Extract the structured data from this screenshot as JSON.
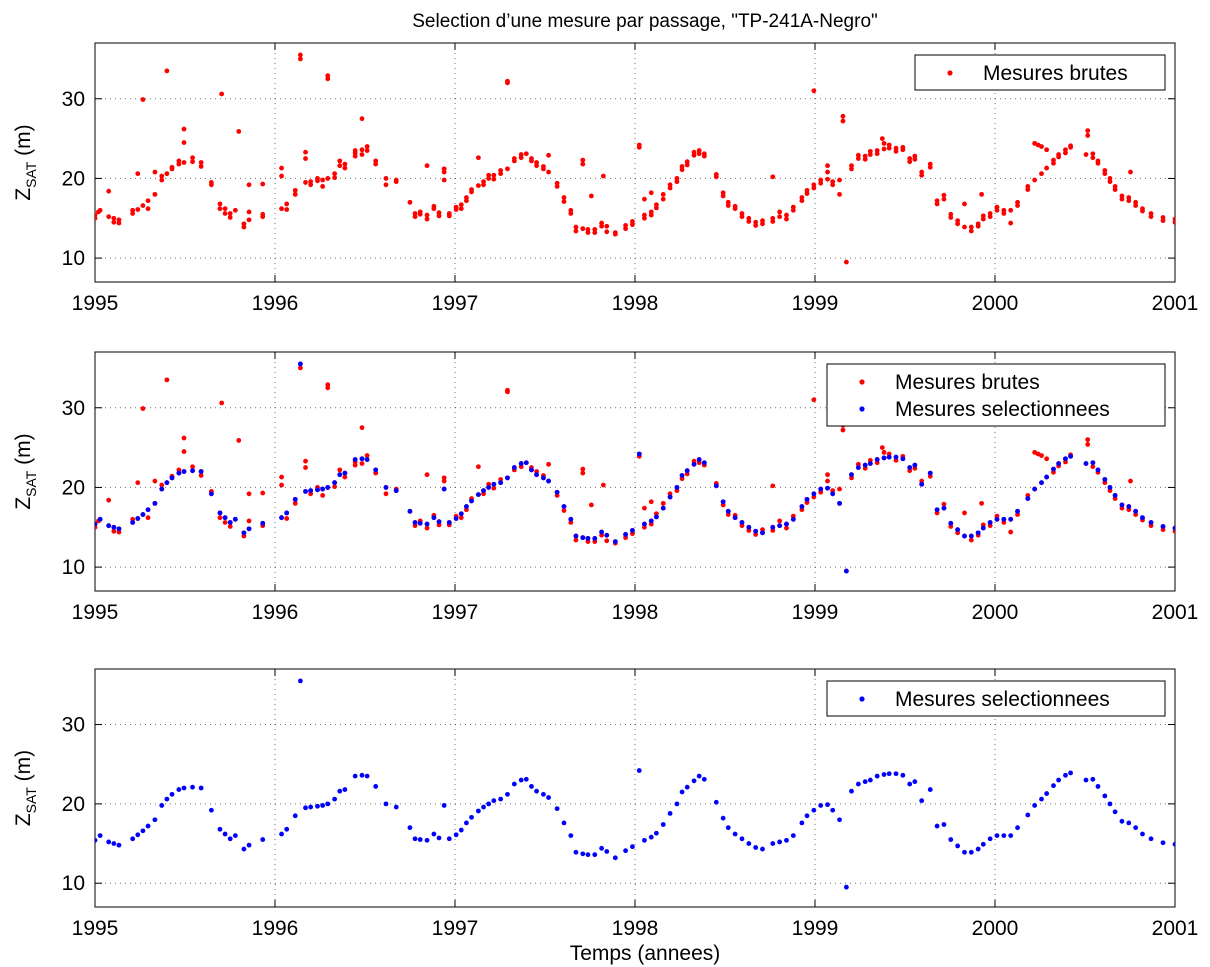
{
  "figure": {
    "title": "Selection d’une mesure par passage, \"TP-241A-Negro\"",
    "xlabel": "Temps (annees)",
    "ylabel_main": "Z",
    "ylabel_sub": "SAT",
    "ylabel_unit": " (m)",
    "colors": {
      "brutes": "#ff0000",
      "selectionnees": "#0000ff"
    },
    "legend_labels": {
      "brutes": "Mesures brutes",
      "selectionnees": "Mesures selectionnees"
    }
  },
  "chart_data": [
    {
      "type": "scatter",
      "panel": "top",
      "xlim": [
        1995,
        2001
      ],
      "ylim": [
        7,
        37
      ],
      "xticks": [
        1995,
        1996,
        1997,
        1998,
        1999,
        2000,
        2001
      ],
      "yticks": [
        10,
        20,
        30
      ],
      "grid": true,
      "legend_position": "top-right",
      "series": [
        {
          "name": "Mesures brutes",
          "color": "#ff0000",
          "key": "brutes"
        }
      ]
    },
    {
      "type": "scatter",
      "panel": "middle",
      "xlim": [
        1995,
        2001
      ],
      "ylim": [
        7,
        37
      ],
      "xticks": [
        1995,
        1996,
        1997,
        1998,
        1999,
        2000,
        2001
      ],
      "yticks": [
        10,
        20,
        30
      ],
      "grid": true,
      "legend_position": "top-right",
      "series": [
        {
          "name": "Mesures brutes",
          "color": "#ff0000",
          "key": "brutes"
        },
        {
          "name": "Mesures selectionnees",
          "color": "#0000ff",
          "key": "selectionnees"
        }
      ]
    },
    {
      "type": "scatter",
      "panel": "bottom",
      "xlim": [
        1995,
        2001
      ],
      "ylim": [
        7,
        37
      ],
      "xticks": [
        1995,
        1996,
        1997,
        1998,
        1999,
        2000,
        2001
      ],
      "yticks": [
        10,
        20,
        30
      ],
      "grid": true,
      "legend_position": "top-right",
      "series": [
        {
          "name": "Mesures selectionnees",
          "color": "#0000ff",
          "key": "selectionnees"
        }
      ]
    }
  ],
  "points": {
    "selectionnees": [
      [
        1995.0,
        15.4
      ],
      [
        1995.03,
        16.0
      ],
      [
        1995.08,
        15.2
      ],
      [
        1995.11,
        15.0
      ],
      [
        1995.14,
        14.8
      ],
      [
        1995.22,
        15.6
      ],
      [
        1995.25,
        16.1
      ],
      [
        1995.28,
        16.6
      ],
      [
        1995.31,
        17.2
      ],
      [
        1995.35,
        18.0
      ],
      [
        1995.39,
        19.8
      ],
      [
        1995.42,
        20.6
      ],
      [
        1995.45,
        21.2
      ],
      [
        1995.49,
        21.8
      ],
      [
        1995.52,
        22.0
      ],
      [
        1995.57,
        22.1
      ],
      [
        1995.62,
        22.0
      ],
      [
        1995.68,
        19.2
      ],
      [
        1995.73,
        16.8
      ],
      [
        1995.76,
        16.2
      ],
      [
        1995.79,
        15.6
      ],
      [
        1995.82,
        16.0
      ],
      [
        1995.87,
        14.3
      ],
      [
        1995.9,
        14.8
      ],
      [
        1995.98,
        15.5
      ],
      [
        1996.09,
        16.2
      ],
      [
        1996.12,
        16.8
      ],
      [
        1996.17,
        18.5
      ],
      [
        1996.2,
        35.5
      ],
      [
        1996.23,
        19.5
      ],
      [
        1996.26,
        19.6
      ],
      [
        1996.3,
        19.7
      ],
      [
        1996.33,
        19.8
      ],
      [
        1996.36,
        20.0
      ],
      [
        1996.4,
        20.6
      ],
      [
        1996.43,
        21.6
      ],
      [
        1996.46,
        21.8
      ],
      [
        1996.52,
        23.5
      ],
      [
        1996.56,
        23.6
      ],
      [
        1996.59,
        23.5
      ],
      [
        1996.64,
        22.2
      ],
      [
        1996.7,
        20.0
      ],
      [
        1996.76,
        19.6
      ],
      [
        1996.84,
        17.0
      ],
      [
        1996.87,
        15.6
      ],
      [
        1996.9,
        15.5
      ],
      [
        1996.94,
        15.4
      ],
      [
        1996.98,
        16.2
      ],
      [
        1997.01,
        15.7
      ],
      [
        1997.04,
        19.8
      ],
      [
        1997.07,
        15.6
      ],
      [
        1997.11,
        16.1
      ],
      [
        1997.14,
        16.7
      ],
      [
        1997.17,
        17.6
      ],
      [
        1997.2,
        18.3
      ],
      [
        1997.24,
        19.1
      ],
      [
        1997.27,
        19.6
      ],
      [
        1997.3,
        20.0
      ],
      [
        1997.33,
        20.4
      ],
      [
        1997.37,
        20.6
      ],
      [
        1997.41,
        21.2
      ],
      [
        1997.45,
        22.5
      ],
      [
        1997.49,
        23.0
      ],
      [
        1997.52,
        23.1
      ],
      [
        1997.55,
        22.2
      ],
      [
        1997.58,
        21.6
      ],
      [
        1997.62,
        21.2
      ],
      [
        1997.65,
        20.8
      ],
      [
        1997.7,
        19.4
      ],
      [
        1997.74,
        17.6
      ],
      [
        1997.78,
        16.0
      ],
      [
        1997.81,
        13.9
      ],
      [
        1997.85,
        13.7
      ],
      [
        1997.88,
        13.6
      ],
      [
        1997.92,
        13.6
      ],
      [
        1997.96,
        14.4
      ],
      [
        1997.99,
        14.0
      ],
      [
        1998.04,
        13.2
      ],
      [
        1998.1,
        14.1
      ],
      [
        1998.14,
        14.6
      ],
      [
        1998.18,
        24.2
      ],
      [
        1998.21,
        15.4
      ],
      [
        1998.25,
        15.8
      ],
      [
        1998.28,
        16.3
      ],
      [
        1998.32,
        17.4
      ],
      [
        1998.36,
        18.8
      ],
      [
        1998.4,
        20.0
      ],
      [
        1998.43,
        21.5
      ],
      [
        1998.46,
        22.1
      ],
      [
        1998.5,
        22.9
      ],
      [
        1998.53,
        23.5
      ],
      [
        1998.56,
        23.1
      ],
      [
        1998.63,
        20.2
      ],
      [
        1998.67,
        18.2
      ],
      [
        1998.7,
        17.0
      ],
      [
        1998.74,
        16.2
      ],
      [
        1998.78,
        15.6
      ],
      [
        1998.82,
        15.0
      ],
      [
        1998.86,
        14.5
      ],
      [
        1998.9,
        14.3
      ],
      [
        1998.96,
        15.0
      ],
      [
        1999.0,
        15.2
      ],
      [
        1999.04,
        15.4
      ],
      [
        1999.08,
        16.0
      ],
      [
        1999.13,
        17.6
      ],
      [
        1999.16,
        18.5
      ],
      [
        1999.2,
        19.2
      ],
      [
        1999.24,
        19.8
      ],
      [
        1999.28,
        19.9
      ],
      [
        1999.31,
        19.2
      ],
      [
        1999.35,
        18.0
      ],
      [
        1999.39,
        9.5
      ],
      [
        1999.42,
        21.6
      ],
      [
        1999.46,
        22.5
      ],
      [
        1999.5,
        22.8
      ],
      [
        1999.53,
        23.0
      ],
      [
        1999.57,
        23.5
      ],
      [
        1999.61,
        23.7
      ],
      [
        1999.64,
        23.8
      ],
      [
        1999.68,
        23.8
      ],
      [
        1999.72,
        23.6
      ],
      [
        1999.76,
        22.5
      ],
      [
        1999.79,
        22.8
      ],
      [
        1999.83,
        20.4
      ],
      [
        1999.88,
        21.8
      ],
      [
        1999.92,
        17.2
      ],
      [
        1999.96,
        17.4
      ],
      [
        2000.0,
        15.5
      ],
      [
        2000.04,
        14.7
      ],
      [
        2000.08,
        13.9
      ],
      [
        2000.12,
        13.9
      ],
      [
        2000.16,
        14.3
      ],
      [
        2000.19,
        14.9
      ],
      [
        2000.23,
        15.6
      ],
      [
        2000.27,
        16.0
      ],
      [
        2000.31,
        16.0
      ],
      [
        2000.35,
        16.0
      ],
      [
        2000.39,
        17.0
      ],
      [
        2000.45,
        18.6
      ],
      [
        2000.49,
        19.8
      ],
      [
        2000.53,
        20.6
      ],
      [
        2000.56,
        21.3
      ],
      [
        2000.6,
        22.3
      ],
      [
        2000.63,
        23.0
      ],
      [
        2000.67,
        23.6
      ],
      [
        2000.7,
        23.9
      ],
      [
        2000.79,
        23.0
      ],
      [
        2000.83,
        23.1
      ],
      [
        2000.86,
        22.2
      ],
      [
        2000.9,
        21.0
      ],
      [
        2000.93,
        20.0
      ],
      [
        2000.96,
        19.0
      ],
      [
        2001.0,
        17.8
      ],
      [
        2001.04,
        17.6
      ],
      [
        2001.08,
        17.0
      ],
      [
        2001.12,
        16.2
      ],
      [
        2001.17,
        15.6
      ],
      [
        2001.24,
        15.1
      ],
      [
        2001.31,
        14.9
      ]
    ],
    "brutes_extra": [
      [
        1995.0,
        15.0
      ],
      [
        1995.02,
        15.8
      ],
      [
        1995.08,
        18.4
      ],
      [
        1995.11,
        14.5
      ],
      [
        1995.14,
        14.4
      ],
      [
        1995.22,
        16.0
      ],
      [
        1995.25,
        20.6
      ],
      [
        1995.28,
        29.9
      ],
      [
        1995.31,
        16.2
      ],
      [
        1995.35,
        20.8
      ],
      [
        1995.39,
        20.3
      ],
      [
        1995.42,
        33.5
      ],
      [
        1995.45,
        21.4
      ],
      [
        1995.49,
        22.2
      ],
      [
        1995.52,
        26.2
      ],
      [
        1995.52,
        24.5
      ],
      [
        1995.57,
        22.6
      ],
      [
        1995.62,
        21.5
      ],
      [
        1995.68,
        19.5
      ],
      [
        1995.73,
        16.2
      ],
      [
        1995.74,
        30.6
      ],
      [
        1995.76,
        15.6
      ],
      [
        1995.79,
        15.1
      ],
      [
        1995.84,
        25.9
      ],
      [
        1995.87,
        13.9
      ],
      [
        1995.9,
        19.2
      ],
      [
        1995.9,
        15.8
      ],
      [
        1995.98,
        19.3
      ],
      [
        1995.98,
        15.2
      ],
      [
        1996.09,
        21.3
      ],
      [
        1996.09,
        20.3
      ],
      [
        1996.12,
        16.1
      ],
      [
        1996.17,
        18.0
      ],
      [
        1996.2,
        35.0
      ],
      [
        1996.23,
        23.3
      ],
      [
        1996.23,
        22.5
      ],
      [
        1996.26,
        19.2
      ],
      [
        1996.3,
        20.0
      ],
      [
        1996.33,
        19.0
      ],
      [
        1996.36,
        32.9
      ],
      [
        1996.36,
        32.5
      ],
      [
        1996.4,
        20.1
      ],
      [
        1996.43,
        22.2
      ],
      [
        1996.46,
        21.3
      ],
      [
        1996.52,
        23.2
      ],
      [
        1996.52,
        22.8
      ],
      [
        1996.56,
        27.5
      ],
      [
        1996.56,
        23.0
      ],
      [
        1996.59,
        24.0
      ],
      [
        1996.64,
        21.8
      ],
      [
        1996.7,
        19.2
      ],
      [
        1996.76,
        19.8
      ],
      [
        1996.87,
        15.2
      ],
      [
        1996.9,
        15.8
      ],
      [
        1996.94,
        21.6
      ],
      [
        1996.94,
        14.9
      ],
      [
        1996.98,
        16.5
      ],
      [
        1997.01,
        15.3
      ],
      [
        1997.04,
        21.2
      ],
      [
        1997.04,
        20.8
      ],
      [
        1997.07,
        15.3
      ],
      [
        1997.11,
        16.4
      ],
      [
        1997.14,
        16.2
      ],
      [
        1997.17,
        17.2
      ],
      [
        1997.2,
        18.6
      ],
      [
        1997.24,
        22.6
      ],
      [
        1997.27,
        19.2
      ],
      [
        1997.3,
        20.4
      ],
      [
        1997.33,
        19.9
      ],
      [
        1997.37,
        21.0
      ],
      [
        1997.41,
        32.2
      ],
      [
        1997.41,
        32.0
      ],
      [
        1997.45,
        22.2
      ],
      [
        1997.49,
        22.6
      ],
      [
        1997.55,
        22.5
      ],
      [
        1997.58,
        22.0
      ],
      [
        1997.62,
        21.5
      ],
      [
        1997.65,
        22.9
      ],
      [
        1997.7,
        19.0
      ],
      [
        1997.74,
        17.1
      ],
      [
        1997.78,
        15.6
      ],
      [
        1997.81,
        13.4
      ],
      [
        1997.85,
        22.3
      ],
      [
        1997.85,
        21.8
      ],
      [
        1997.88,
        13.2
      ],
      [
        1997.9,
        17.8
      ],
      [
        1997.92,
        13.2
      ],
      [
        1997.96,
        14.0
      ],
      [
        1997.97,
        20.3
      ],
      [
        1997.99,
        13.3
      ],
      [
        1998.04,
        13.0
      ],
      [
        1998.1,
        13.7
      ],
      [
        1998.14,
        14.2
      ],
      [
        1998.18,
        23.9
      ],
      [
        1998.21,
        17.4
      ],
      [
        1998.21,
        15.0
      ],
      [
        1998.25,
        15.4
      ],
      [
        1998.25,
        18.2
      ],
      [
        1998.28,
        16.7
      ],
      [
        1998.32,
        18.0
      ],
      [
        1998.36,
        19.2
      ],
      [
        1998.4,
        19.6
      ],
      [
        1998.43,
        21.1
      ],
      [
        1998.46,
        21.7
      ],
      [
        1998.5,
        23.3
      ],
      [
        1998.53,
        23.1
      ],
      [
        1998.56,
        22.8
      ],
      [
        1998.63,
        20.5
      ],
      [
        1998.67,
        17.8
      ],
      [
        1998.7,
        16.6
      ],
      [
        1998.74,
        16.5
      ],
      [
        1998.78,
        15.2
      ],
      [
        1998.82,
        14.6
      ],
      [
        1998.86,
        14.1
      ],
      [
        1998.9,
        14.7
      ],
      [
        1998.96,
        20.2
      ],
      [
        1998.96,
        14.6
      ],
      [
        1999.0,
        15.8
      ],
      [
        1999.04,
        14.9
      ],
      [
        1999.08,
        16.4
      ],
      [
        1999.13,
        17.2
      ],
      [
        1999.16,
        18.1
      ],
      [
        1999.2,
        31.0
      ],
      [
        1999.2,
        18.8
      ],
      [
        1999.24,
        19.4
      ],
      [
        1999.28,
        20.8
      ],
      [
        1999.28,
        21.6
      ],
      [
        1999.31,
        19.6
      ],
      [
        1999.35,
        19.8
      ],
      [
        1999.37,
        27.8
      ],
      [
        1999.37,
        27.2
      ],
      [
        1999.42,
        21.2
      ],
      [
        1999.46,
        22.9
      ],
      [
        1999.5,
        22.4
      ],
      [
        1999.53,
        23.4
      ],
      [
        1999.57,
        23.1
      ],
      [
        1999.6,
        25.0
      ],
      [
        1999.61,
        24.4
      ],
      [
        1999.64,
        24.2
      ],
      [
        1999.68,
        23.4
      ],
      [
        1999.72,
        23.9
      ],
      [
        1999.76,
        22.1
      ],
      [
        1999.79,
        22.4
      ],
      [
        1999.83,
        20.8
      ],
      [
        1999.88,
        21.4
      ],
      [
        1999.92,
        16.8
      ],
      [
        1999.96,
        17.9
      ],
      [
        2000.0,
        15.1
      ],
      [
        2000.04,
        14.3
      ],
      [
        2000.08,
        16.8
      ],
      [
        2000.12,
        13.4
      ],
      [
        2000.16,
        14.0
      ],
      [
        2000.18,
        18.0
      ],
      [
        2000.19,
        15.3
      ],
      [
        2000.23,
        15.2
      ],
      [
        2000.27,
        16.4
      ],
      [
        2000.31,
        15.6
      ],
      [
        2000.35,
        14.4
      ],
      [
        2000.39,
        16.6
      ],
      [
        2000.45,
        19.0
      ],
      [
        2000.49,
        24.4
      ],
      [
        2000.51,
        24.2
      ],
      [
        2000.53,
        24.0
      ],
      [
        2000.56,
        23.6
      ],
      [
        2000.6,
        21.9
      ],
      [
        2000.63,
        22.7
      ],
      [
        2000.67,
        23.2
      ],
      [
        2000.7,
        24.1
      ],
      [
        2000.8,
        26.0
      ],
      [
        2000.8,
        25.4
      ],
      [
        2000.83,
        22.6
      ],
      [
        2000.86,
        21.9
      ],
      [
        2000.9,
        20.6
      ],
      [
        2000.93,
        19.6
      ],
      [
        2000.96,
        18.6
      ],
      [
        2001.0,
        17.4
      ],
      [
        2001.04,
        17.2
      ],
      [
        2001.05,
        20.8
      ],
      [
        2001.08,
        16.6
      ],
      [
        2001.12,
        15.9
      ],
      [
        2001.17,
        15.2
      ],
      [
        2001.24,
        14.7
      ],
      [
        2001.31,
        14.5
      ]
    ]
  }
}
